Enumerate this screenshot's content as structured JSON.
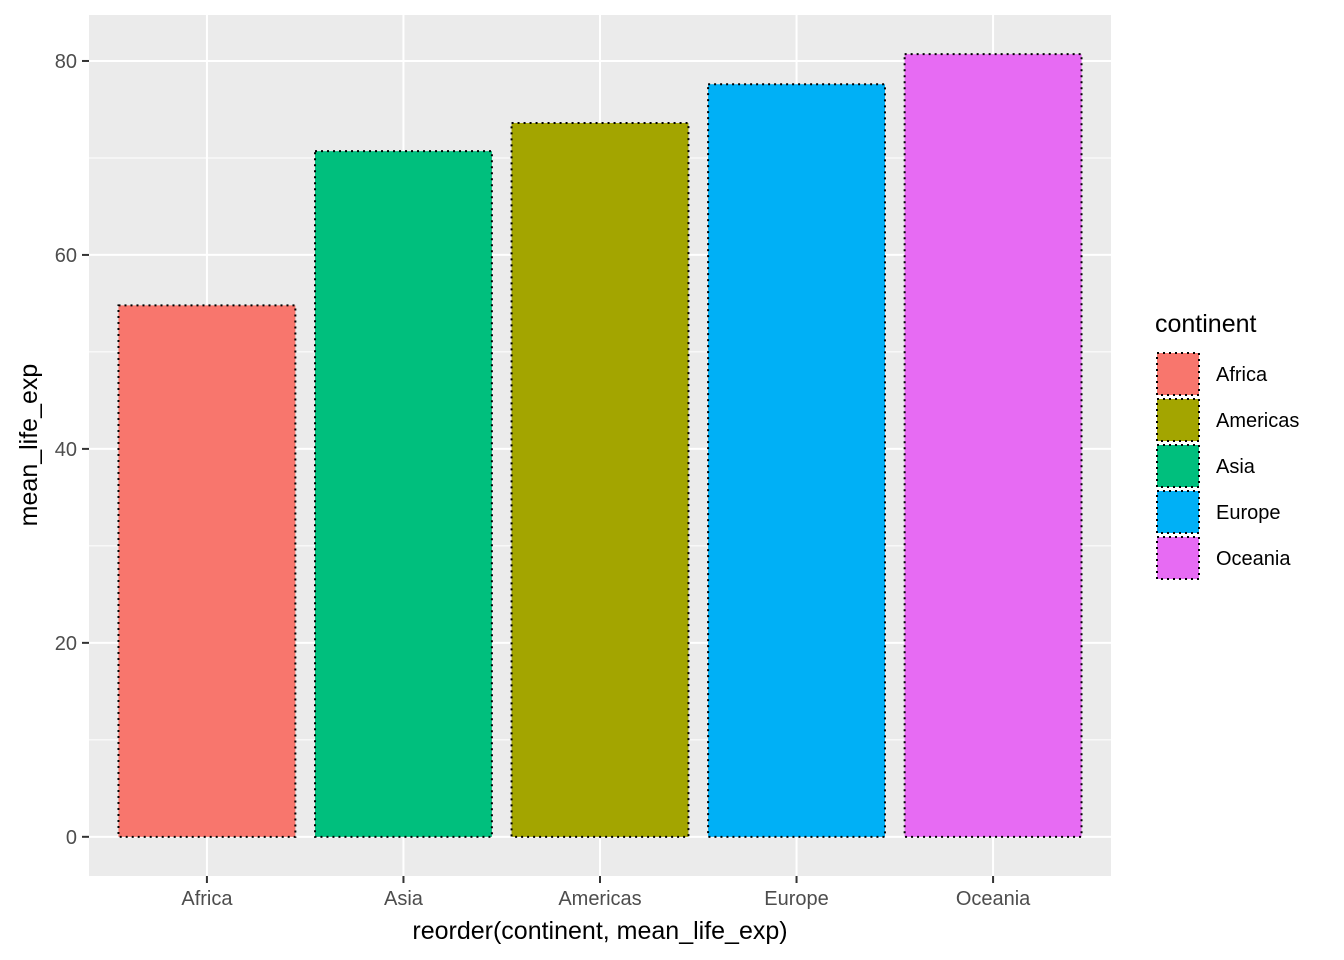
{
  "chart_data": {
    "type": "bar",
    "categories": [
      "Africa",
      "Asia",
      "Americas",
      "Europe",
      "Oceania"
    ],
    "values": [
      54.8,
      70.7,
      73.6,
      77.6,
      80.7
    ],
    "colors": [
      "#F8766D",
      "#00BF7D",
      "#A3A500",
      "#00B0F6",
      "#E76BF3"
    ],
    "xlabel": "reorder(continent, mean_life_exp)",
    "ylabel": "mean_life_exp",
    "ylim": [
      -4.04,
      84.74
    ],
    "yticks": [
      0,
      20,
      40,
      60,
      80
    ],
    "ytick_labels": [
      "0",
      "20",
      "40",
      "60",
      "80"
    ],
    "grid": true,
    "panel_background": "#EBEBEB",
    "bar_outline": "dotted black",
    "legend": {
      "title": "continent",
      "placement": "right",
      "entries": [
        {
          "label": "Africa",
          "color": "#F8766D"
        },
        {
          "label": "Americas",
          "color": "#A3A500"
        },
        {
          "label": "Asia",
          "color": "#00BF7D"
        },
        {
          "label": "Europe",
          "color": "#00B0F6"
        },
        {
          "label": "Oceania",
          "color": "#E76BF3"
        }
      ]
    }
  }
}
